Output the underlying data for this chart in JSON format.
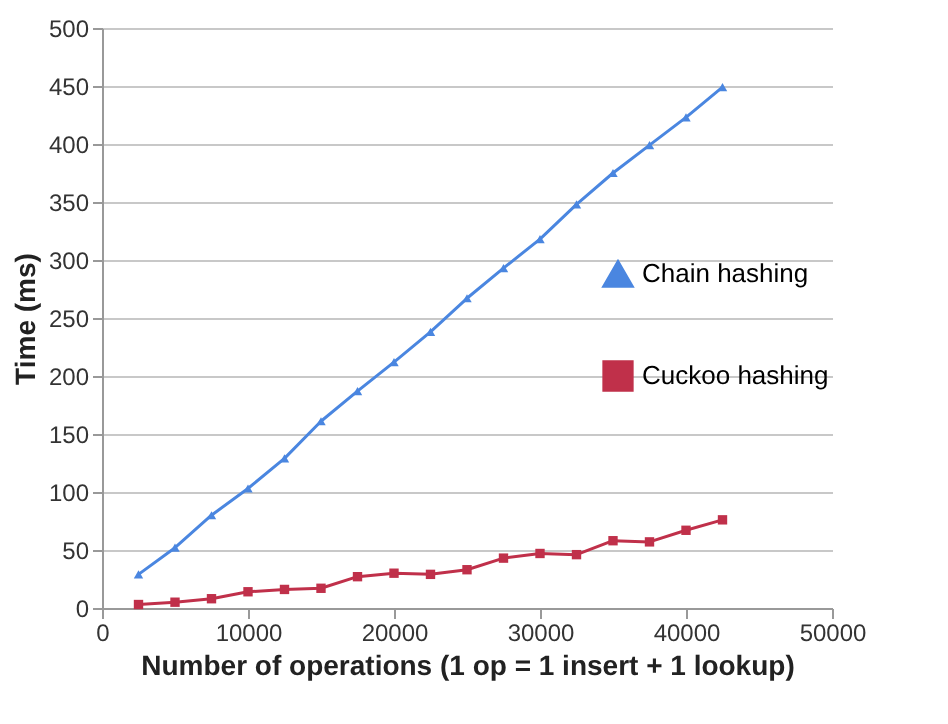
{
  "chart_data": {
    "type": "line",
    "xlabel": "Number of operations (1 op = 1 insert + 1 lookup)",
    "ylabel": "Time (ms)",
    "x": [
      2500,
      5000,
      7500,
      10000,
      12500,
      15000,
      17500,
      20000,
      22500,
      25000,
      27500,
      30000,
      32500,
      35000,
      37500,
      40000,
      42500
    ],
    "series": [
      {
        "name": "Chain hashing",
        "color": "#4a86e0",
        "marker": "triangle",
        "values": [
          29,
          52,
          80,
          103,
          129,
          161,
          187,
          212,
          238,
          267,
          293,
          318,
          348,
          375,
          399,
          423,
          449
        ]
      },
      {
        "name": "Cuckoo hashing",
        "color": "#c0304a",
        "marker": "square",
        "values": [
          3,
          5,
          8,
          14,
          16,
          17,
          27,
          30,
          29,
          33,
          43,
          47,
          46,
          58,
          57,
          67,
          76
        ]
      }
    ],
    "xlim": [
      0,
      50000
    ],
    "xticks": [
      0,
      10000,
      20000,
      30000,
      40000,
      50000
    ],
    "ylim": [
      0,
      500
    ],
    "yticks": [
      0,
      50,
      100,
      150,
      200,
      250,
      300,
      350,
      400,
      450,
      500
    ],
    "grid": "y",
    "legend": "right"
  }
}
